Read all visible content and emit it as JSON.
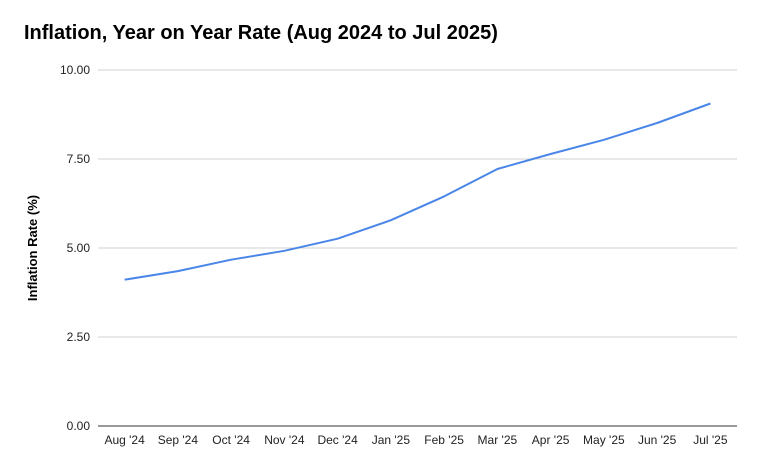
{
  "chart_data": {
    "type": "line",
    "title": "Inflation, Year on Year Rate (Aug 2024 to Jul 2025)",
    "xlabel": "",
    "ylabel": "Inflation Rate (%)",
    "categories": [
      "Aug '24",
      "Sep '24",
      "Oct '24",
      "Nov '24",
      "Dec '24",
      "Jan '25",
      "Feb '25",
      "Mar '25",
      "Apr '25",
      "May '25",
      "Jun '25",
      "Jul '25"
    ],
    "series": [
      {
        "values": [
          4.11,
          4.35,
          4.67,
          4.92,
          5.26,
          5.78,
          6.45,
          7.22,
          7.64,
          8.04,
          8.51,
          9.06
        ],
        "color": "#4a86e8"
      }
    ],
    "ylim": [
      0,
      10
    ],
    "yticks": [
      "0.00",
      "2.50",
      "5.00",
      "7.50",
      "10.00"
    ],
    "grid": true,
    "legend": "none"
  }
}
